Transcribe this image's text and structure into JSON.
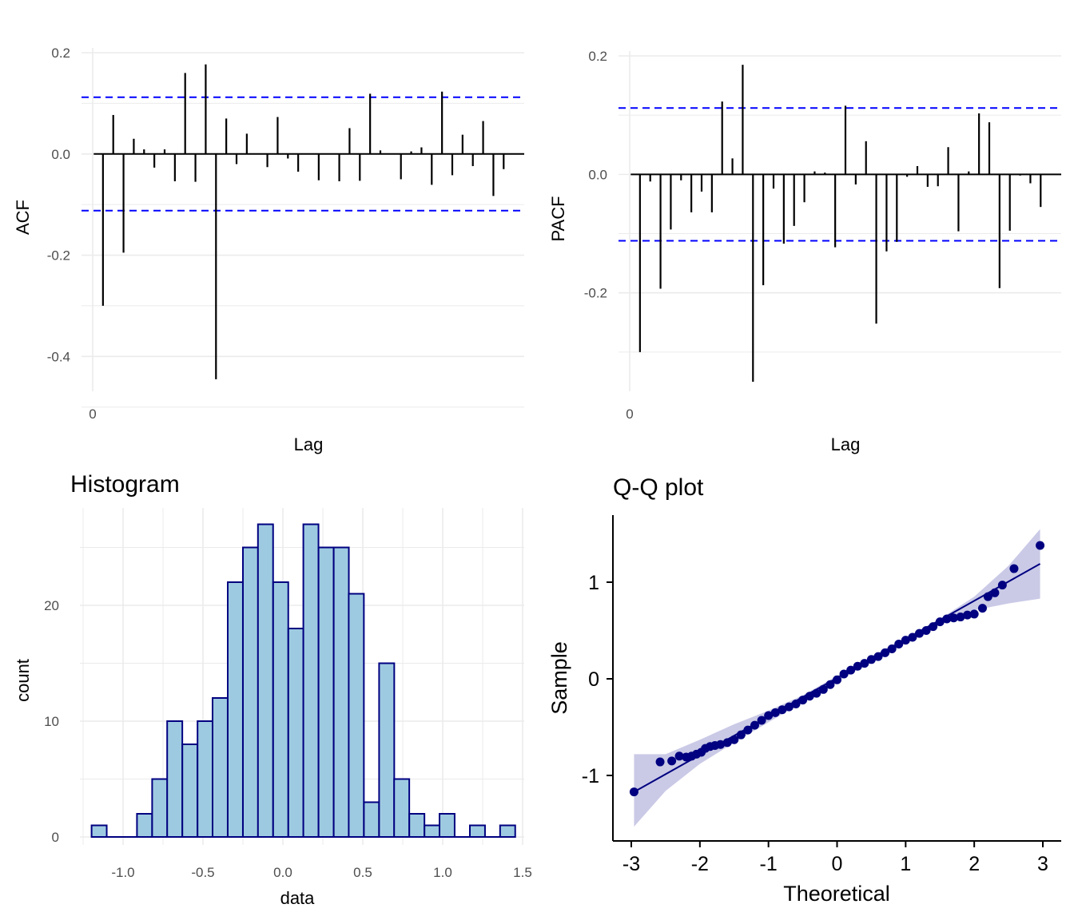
{
  "chart_data": [
    {
      "id": "acf",
      "type": "bar",
      "title": "",
      "xlabel": "Lag",
      "ylabel": "ACF",
      "x_ticks": [
        0
      ],
      "y_ticks": [
        -0.4,
        -0.2,
        0.0,
        0.2
      ],
      "y_tick_labels": [
        "-0.4",
        "-0.2",
        "0.0",
        "0.2"
      ],
      "xlim": [
        0,
        21
      ],
      "ylim": [
        -0.45,
        0.2
      ],
      "confidence_bound": 0.112,
      "bound_color": "#0000ff",
      "bar_color": "#000000",
      "lags": [
        0.5,
        1,
        1.5,
        2,
        2.5,
        3,
        3.5,
        4,
        4.5,
        5,
        5.5,
        6,
        6.5,
        7,
        7.5,
        8,
        8.5,
        9,
        9.5,
        10,
        10.5,
        11,
        11.5,
        12,
        12.5,
        13,
        13.5,
        14,
        14.5,
        15,
        15.5,
        16,
        16.5,
        17,
        17.5,
        18,
        18.5,
        19,
        19.5,
        20
      ],
      "values": [
        -0.3,
        0.077,
        -0.195,
        0.03,
        0.009,
        -0.027,
        0.009,
        -0.054,
        0.16,
        -0.055,
        0.177,
        -0.445,
        0.07,
        -0.02,
        0.04,
        0.0,
        -0.026,
        0.073,
        -0.009,
        -0.035,
        0.0,
        -0.052,
        0.0,
        -0.054,
        0.051,
        -0.053,
        0.119,
        0.007,
        0.0,
        -0.05,
        0.005,
        0.013,
        -0.061,
        0.123,
        -0.042,
        0.038,
        -0.024,
        0.065,
        -0.083,
        -0.03
      ]
    },
    {
      "id": "pacf",
      "type": "bar",
      "title": "",
      "xlabel": "Lag",
      "ylabel": "PACF",
      "x_ticks": [
        0
      ],
      "y_ticks": [
        -0.2,
        0.0,
        0.2
      ],
      "y_tick_labels": [
        "-0.2",
        "0.0",
        "0.2"
      ],
      "xlim": [
        0,
        21
      ],
      "ylim": [
        -0.35,
        0.2
      ],
      "confidence_bound": 0.112,
      "bound_color": "#0000ff",
      "bar_color": "#000000",
      "lags": [
        0.5,
        1,
        1.5,
        2,
        2.5,
        3,
        3.5,
        4,
        4.5,
        5,
        5.5,
        6,
        6.5,
        7,
        7.5,
        8,
        8.5,
        9,
        9.5,
        10,
        10.5,
        11,
        11.5,
        12,
        12.5,
        13,
        13.5,
        14,
        14.5,
        15,
        15.5,
        16,
        16.5,
        17,
        17.5,
        18,
        18.5,
        19,
        19.5,
        20
      ],
      "values": [
        -0.3,
        -0.012,
        -0.193,
        -0.093,
        -0.01,
        -0.064,
        -0.029,
        -0.064,
        0.123,
        0.027,
        0.185,
        -0.35,
        -0.187,
        -0.024,
        -0.117,
        -0.087,
        -0.047,
        0.005,
        0.003,
        -0.123,
        0.116,
        -0.017,
        0.056,
        -0.252,
        -0.13,
        -0.114,
        -0.004,
        0.014,
        -0.021,
        -0.02,
        0.046,
        -0.096,
        0.005,
        0.103,
        0.088,
        -0.192,
        -0.095,
        -0.002,
        -0.015,
        -0.055
      ]
    },
    {
      "id": "histogram",
      "type": "bar",
      "title": "Histogram",
      "xlabel": "data",
      "ylabel": "count",
      "x_ticks": [
        -1.0,
        -0.5,
        0.0,
        0.5,
        1.0,
        1.5
      ],
      "x_tick_labels": [
        "-1.0",
        "-0.5",
        "0.0",
        "0.5",
        "1.0",
        "1.5"
      ],
      "y_ticks": [
        0,
        10,
        20
      ],
      "y_tick_labels": [
        "0",
        "10",
        "20"
      ],
      "xlim": [
        -1.25,
        1.5
      ],
      "ylim": [
        0,
        28
      ],
      "fill_color": "#9ecae1",
      "edge_color": "#000080",
      "bin_width": 0.0947,
      "bin_starts": [
        -1.197,
        -1.102,
        -1.008,
        -0.913,
        -0.818,
        -0.724,
        -0.629,
        -0.534,
        -0.44,
        -0.345,
        -0.25,
        -0.156,
        -0.061,
        0.034,
        0.128,
        0.223,
        0.318,
        0.412,
        0.507,
        0.602,
        0.696,
        0.791,
        0.886,
        0.98,
        1.075,
        1.17,
        1.264,
        1.359
      ],
      "values": [
        1,
        0,
        0,
        2,
        5,
        10,
        8,
        10,
        12,
        22,
        25,
        27,
        22,
        18,
        27,
        25,
        25,
        21,
        3,
        15,
        5,
        2,
        1,
        2,
        0,
        1,
        0,
        1
      ]
    },
    {
      "id": "qq",
      "type": "scatter",
      "title": "Q-Q plot",
      "xlabel": "Theoretical",
      "ylabel": "Sample",
      "x_ticks": [
        -3,
        -2,
        -1,
        0,
        1,
        2,
        3
      ],
      "x_tick_labels": [
        "-3",
        "-2",
        "-1",
        "0",
        "1",
        "2",
        "3"
      ],
      "y_ticks": [
        -1,
        0,
        1
      ],
      "y_tick_labels": [
        "-1",
        "0",
        "1"
      ],
      "xlim": [
        -3.25,
        3.25
      ],
      "ylim": [
        -1.65,
        1.7
      ],
      "point_color": "#000080",
      "band_color": "#b3b3dd",
      "points": [
        [
          -2.96,
          -1.17
        ],
        [
          -2.58,
          -0.86
        ],
        [
          -2.41,
          -0.85
        ],
        [
          -2.3,
          -0.8
        ],
        [
          -2.2,
          -0.81
        ],
        [
          -2.12,
          -0.8
        ],
        [
          -2.05,
          -0.78
        ],
        [
          -1.98,
          -0.76
        ],
        [
          -1.92,
          -0.72
        ],
        [
          -1.85,
          -0.7
        ],
        [
          -1.78,
          -0.69
        ],
        [
          -1.7,
          -0.68
        ],
        [
          -1.6,
          -0.66
        ],
        [
          -1.5,
          -0.63
        ],
        [
          -1.4,
          -0.58
        ],
        [
          -1.3,
          -0.53
        ],
        [
          -1.2,
          -0.48
        ],
        [
          -1.1,
          -0.43
        ],
        [
          -1.0,
          -0.38
        ],
        [
          -0.9,
          -0.35
        ],
        [
          -0.8,
          -0.32
        ],
        [
          -0.7,
          -0.29
        ],
        [
          -0.6,
          -0.26
        ],
        [
          -0.5,
          -0.22
        ],
        [
          -0.4,
          -0.18
        ],
        [
          -0.3,
          -0.15
        ],
        [
          -0.2,
          -0.11
        ],
        [
          -0.1,
          -0.06
        ],
        [
          0.0,
          -0.01
        ],
        [
          0.1,
          0.05
        ],
        [
          0.2,
          0.09
        ],
        [
          0.3,
          0.13
        ],
        [
          0.4,
          0.16
        ],
        [
          0.5,
          0.2
        ],
        [
          0.6,
          0.23
        ],
        [
          0.7,
          0.27
        ],
        [
          0.8,
          0.31
        ],
        [
          0.9,
          0.36
        ],
        [
          1.0,
          0.4
        ],
        [
          1.1,
          0.43
        ],
        [
          1.2,
          0.47
        ],
        [
          1.3,
          0.5
        ],
        [
          1.4,
          0.54
        ],
        [
          1.5,
          0.59
        ],
        [
          1.6,
          0.62
        ],
        [
          1.7,
          0.63
        ],
        [
          1.8,
          0.64
        ],
        [
          1.9,
          0.66
        ],
        [
          2.0,
          0.67
        ],
        [
          2.12,
          0.73
        ],
        [
          2.2,
          0.85
        ],
        [
          2.3,
          0.89
        ],
        [
          2.41,
          0.97
        ],
        [
          2.58,
          1.14
        ],
        [
          2.96,
          1.38
        ]
      ],
      "reference_line": [
        [
          -2.96,
          -1.17
        ],
        [
          2.96,
          1.19
        ]
      ],
      "band_upper": [
        [
          -2.96,
          -0.78
        ],
        [
          -2.5,
          -0.78
        ],
        [
          -2.0,
          -0.63
        ],
        [
          -1.5,
          -0.47
        ],
        [
          -1.0,
          -0.33
        ],
        [
          -0.5,
          -0.17
        ],
        [
          0.0,
          0.03
        ],
        [
          0.5,
          0.23
        ],
        [
          1.0,
          0.43
        ],
        [
          1.5,
          0.62
        ],
        [
          2.0,
          0.85
        ],
        [
          2.5,
          1.17
        ],
        [
          2.96,
          1.55
        ]
      ],
      "band_lower": [
        [
          -2.96,
          -1.53
        ],
        [
          -2.5,
          -1.16
        ],
        [
          -2.0,
          -0.88
        ],
        [
          -1.5,
          -0.66
        ],
        [
          -1.0,
          -0.45
        ],
        [
          -0.5,
          -0.24
        ],
        [
          0.0,
          -0.03
        ],
        [
          0.5,
          0.18
        ],
        [
          1.0,
          0.38
        ],
        [
          1.5,
          0.58
        ],
        [
          2.0,
          0.71
        ],
        [
          2.5,
          0.78
        ],
        [
          2.96,
          0.83
        ]
      ]
    }
  ]
}
